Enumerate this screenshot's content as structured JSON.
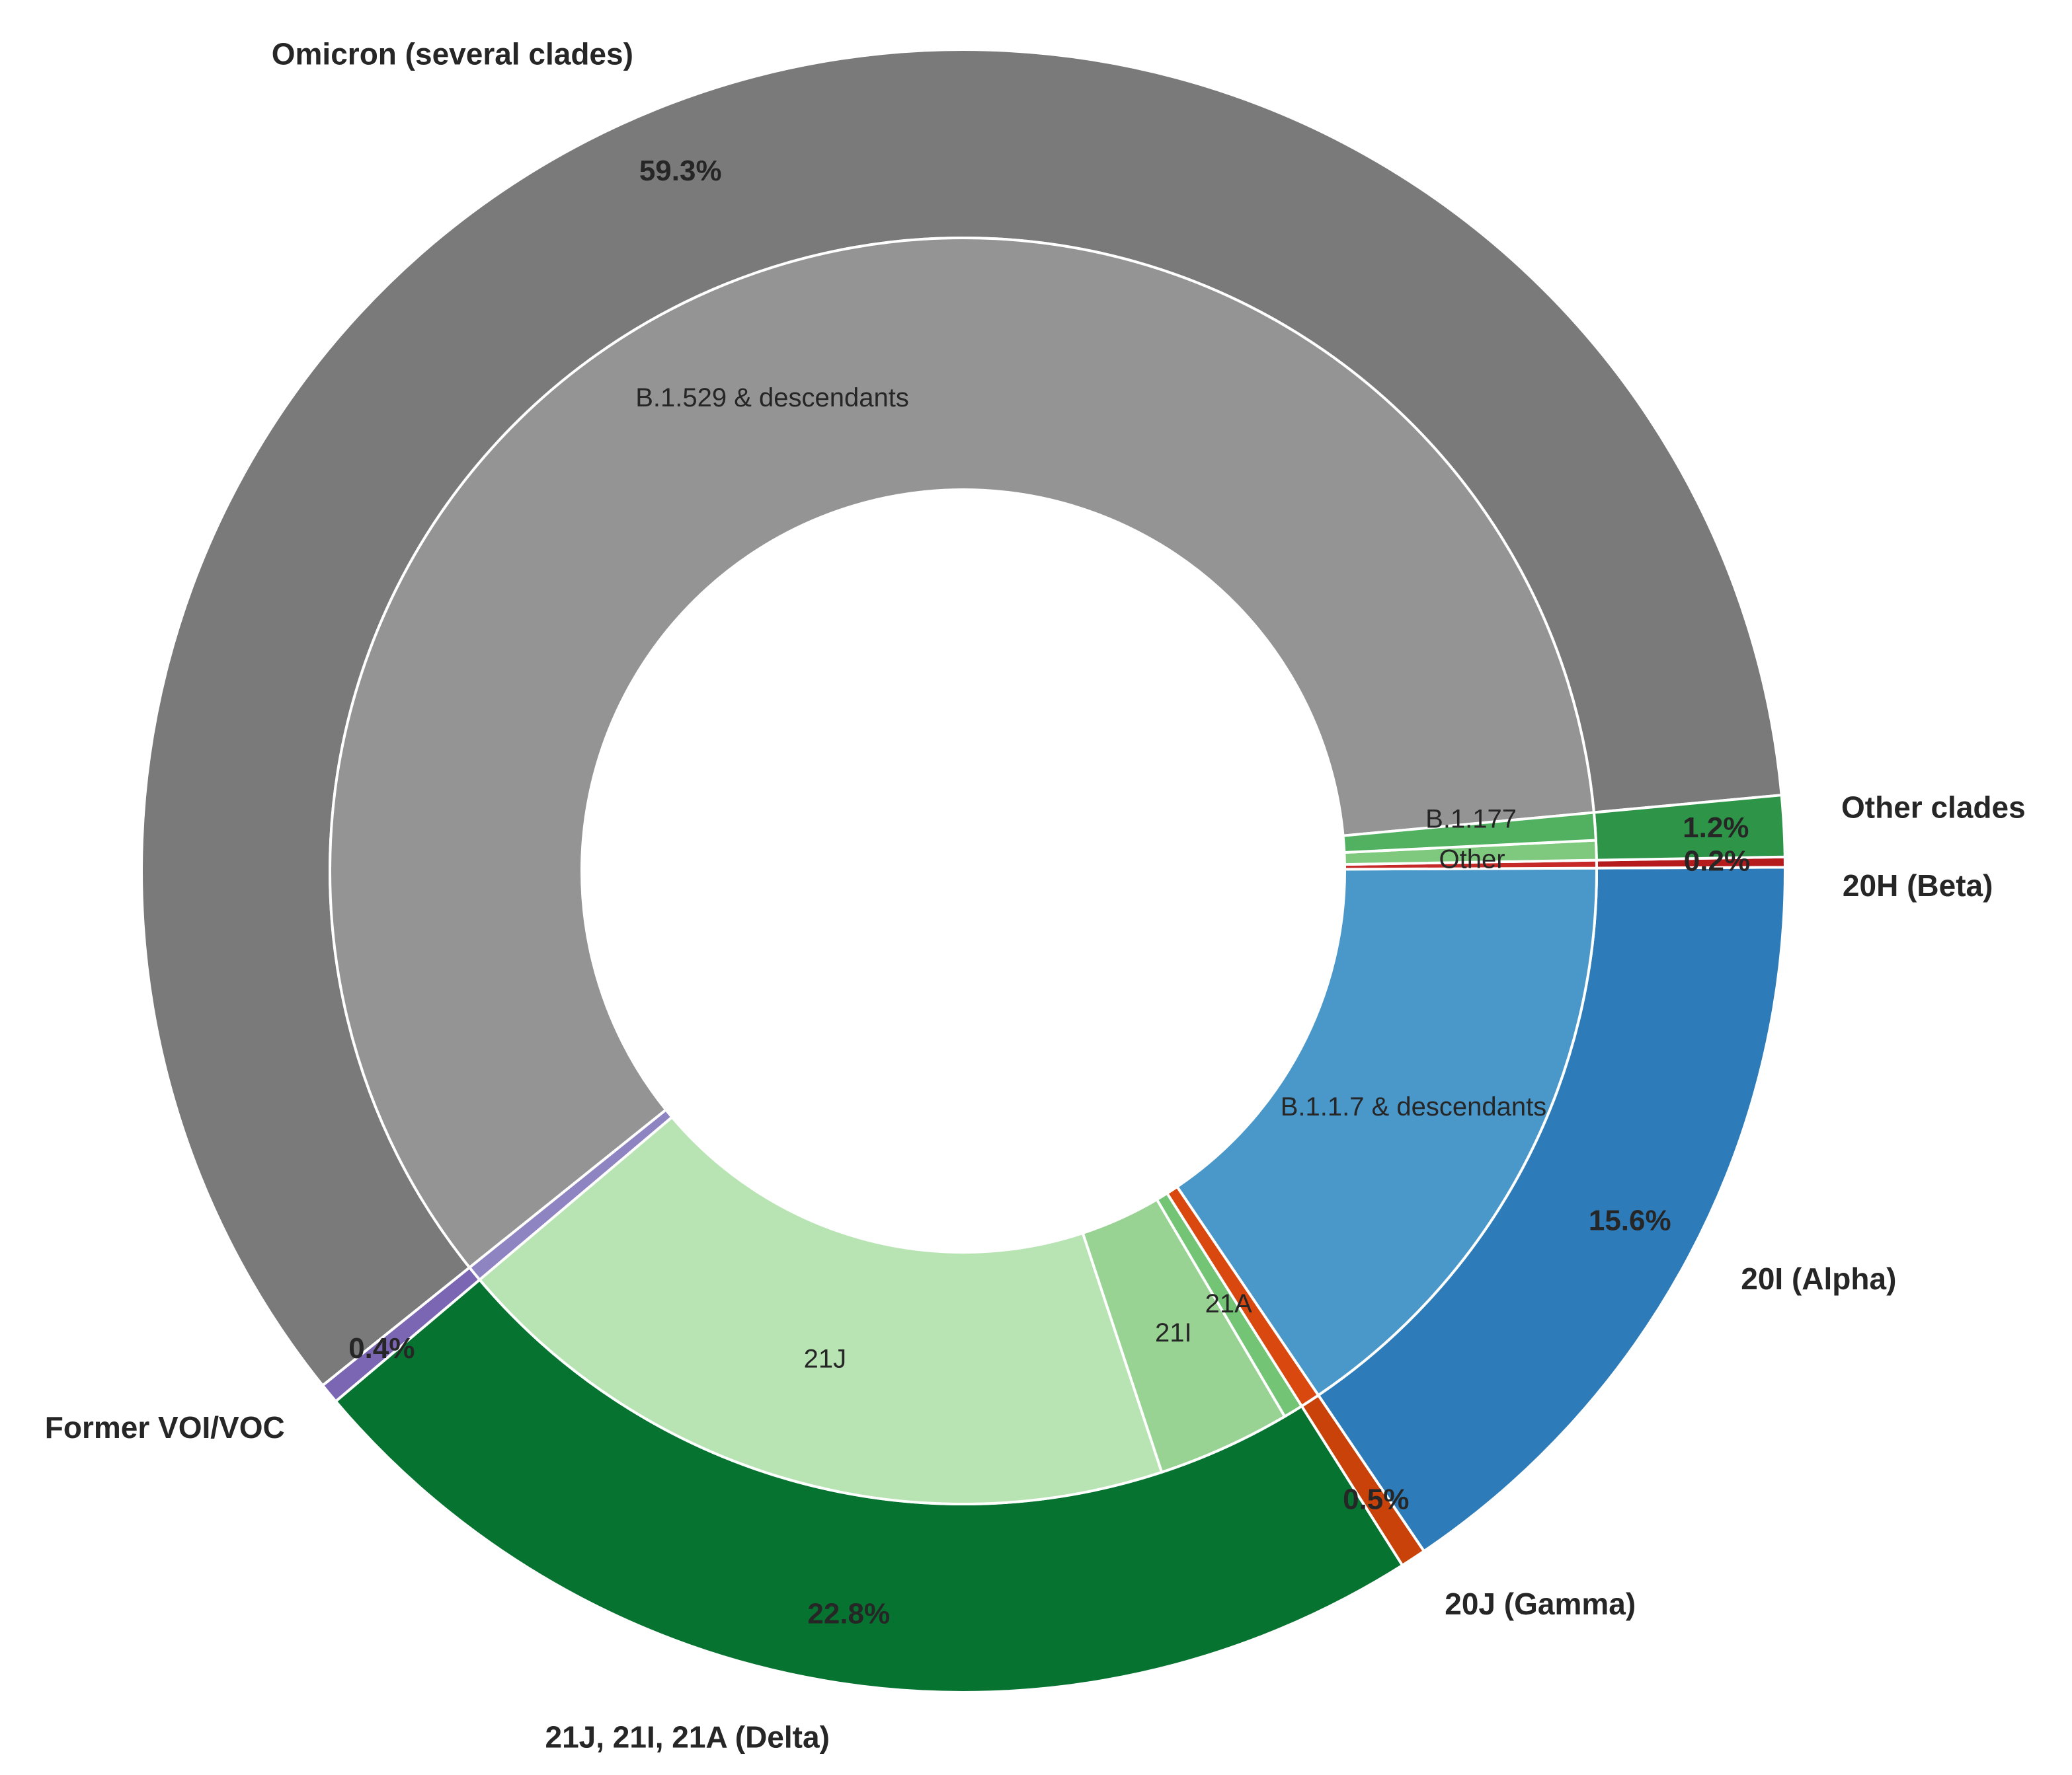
{
  "chart_data": {
    "type": "pie",
    "style": "nested-donut",
    "outer": [
      {
        "label": "Omicron (several clades)",
        "value": 59.3,
        "pct_label": "59.3%",
        "color": "#7a7a7a"
      },
      {
        "label": "Former VOI/VOC",
        "value": 0.4,
        "pct_label": "0.4%",
        "color": "#7b66b3"
      },
      {
        "label": "21J, 21I, 21A (Delta)",
        "value": 22.8,
        "pct_label": "22.8%",
        "color": "#077331"
      },
      {
        "label": "20J (Gamma)",
        "value": 0.5,
        "pct_label": "0.5%",
        "color": "#c84209"
      },
      {
        "label": "20I (Alpha)",
        "value": 15.6,
        "pct_label": "15.6%",
        "color": "#2d7cb9"
      },
      {
        "label": "20H (Beta)",
        "value": 0.2,
        "pct_label": "0.2%",
        "color": "#b51a1d"
      },
      {
        "label": "Other clades",
        "value": 1.2,
        "pct_label": "1.2%",
        "color": "#2e9448"
      }
    ],
    "inner": [
      {
        "label": "B.1.529 & descendants",
        "value": 59.3,
        "color": "#949494"
      },
      {
        "label": "",
        "value": 0.4,
        "color": "#8e84c1"
      },
      {
        "label": "21J",
        "value": 18.9,
        "color": "#b8e3b3"
      },
      {
        "label": "21I",
        "value": 3.4,
        "color": "#98d393"
      },
      {
        "label": "21A",
        "value": 0.5,
        "color": "#74c476"
      },
      {
        "label": "",
        "value": 0.5,
        "color": "#d9480f"
      },
      {
        "label": "B.1.1.7 & descendants",
        "value": 15.6,
        "color": "#4a98ca"
      },
      {
        "label": "",
        "value": 0.2,
        "color": "#c62a28"
      },
      {
        "label": "Other",
        "value": 0.5,
        "color": "#7fc97f"
      },
      {
        "label": "B.1.177",
        "value": 0.7,
        "color": "#51b161"
      }
    ],
    "title": "",
    "legend": "none"
  }
}
